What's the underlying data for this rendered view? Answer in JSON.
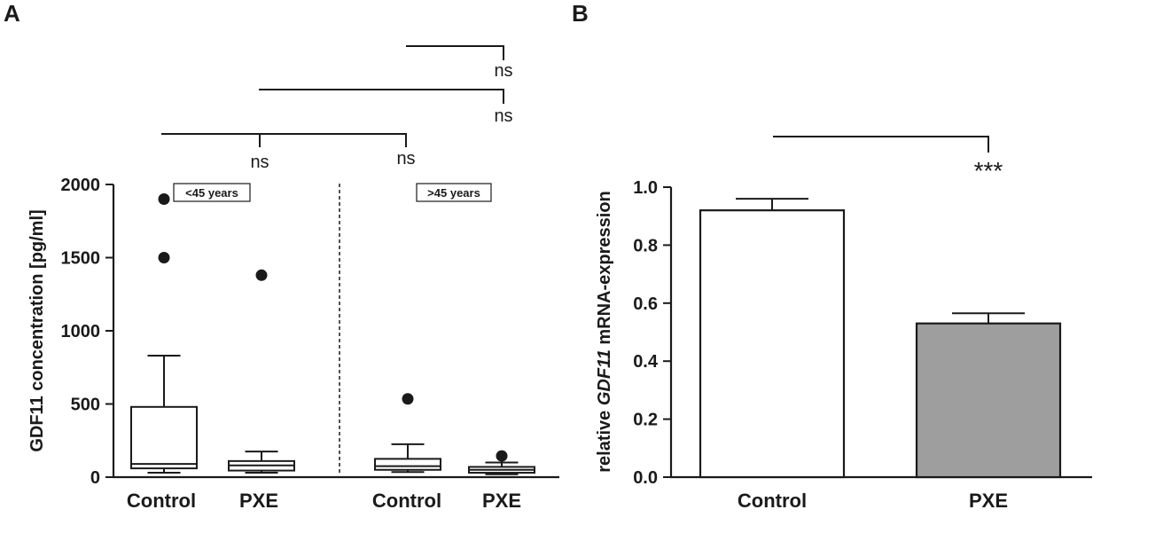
{
  "colors": {
    "ink": "#1a1a1a",
    "bar_control": "#ffffff",
    "bar_pxe": "#9e9e9e",
    "box_fill": "#ffffff"
  },
  "chart_data": [
    {
      "type": "box",
      "panel_label": "A",
      "title": "",
      "ylabel": "GDF11 concentration [pg/ml]",
      "ylim": [
        0,
        2000
      ],
      "yticks": [
        "0",
        "500",
        "1000",
        "1500",
        "2000"
      ],
      "categories": [
        "Control",
        "PXE",
        "Control",
        "PXE"
      ],
      "groups": [
        {
          "label": "<45 years",
          "categories": [
            "Control",
            "PXE"
          ]
        },
        {
          "label": ">45 years",
          "categories": [
            "Control",
            "PXE"
          ]
        }
      ],
      "boxes": [
        {
          "category": "Control",
          "group": "<45 years",
          "whisker_low": 30,
          "q1": 60,
          "median": 90,
          "q3": 480,
          "whisker_high": 830,
          "outliers": [
            1500,
            1900
          ]
        },
        {
          "category": "PXE",
          "group": "<45 years",
          "whisker_low": 30,
          "q1": 45,
          "median": 80,
          "q3": 110,
          "whisker_high": 175,
          "outliers": [
            1380
          ]
        },
        {
          "category": "Control",
          "group": ">45 years",
          "whisker_low": 35,
          "q1": 50,
          "median": 75,
          "q3": 125,
          "whisker_high": 225,
          "outliers": [
            535
          ]
        },
        {
          "category": "PXE",
          "group": ">45 years",
          "whisker_low": 20,
          "q1": 30,
          "median": 50,
          "q3": 70,
          "whisker_high": 100,
          "outliers": [
            145
          ]
        }
      ],
      "comparisons": [
        {
          "between": [
            "Control <45 years",
            "Control >45 years"
          ],
          "label": "ns"
        },
        {
          "between": [
            "PXE <45 years",
            "PXE >45 years"
          ],
          "label": "ns"
        },
        {
          "between": [
            "Control <45 years",
            "PXE <45 years"
          ],
          "label": "ns"
        },
        {
          "between": [
            "Control >45 years",
            "PXE >45 years"
          ],
          "label": "ns"
        }
      ],
      "grid": false
    },
    {
      "type": "bar",
      "panel_label": "B",
      "title": "",
      "ylabel_prefix": "relative ",
      "ylabel_italic": "GDF11",
      "ylabel_suffix": " mRNA-expression",
      "ylim": [
        0,
        1.0
      ],
      "yticks": [
        "0.0",
        "0.2",
        "0.4",
        "0.6",
        "0.8",
        "1.0"
      ],
      "categories": [
        "Control",
        "PXE"
      ],
      "values": [
        0.92,
        0.53
      ],
      "errors": [
        0.04,
        0.035
      ],
      "significance": {
        "between": [
          "Control",
          "PXE"
        ],
        "label": "***"
      },
      "grid": false
    }
  ]
}
